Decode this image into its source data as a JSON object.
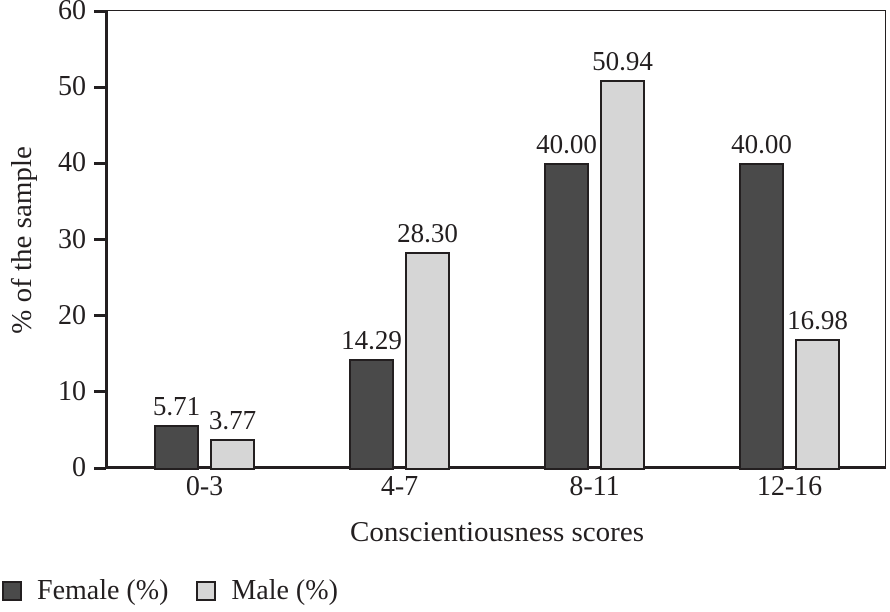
{
  "chart_data": {
    "type": "bar",
    "title": "",
    "xlabel": "Conscientiousness scores",
    "ylabel": "% of the sample",
    "categories": [
      "0-3",
      "4-7",
      "8-11",
      "12-16"
    ],
    "series": [
      {
        "name": "Female (%)",
        "color": "#4a4a4a",
        "values": [
          5.71,
          14.29,
          40.0,
          40.0
        ],
        "labels": [
          "5.71",
          "14.29",
          "40.00",
          "40.00"
        ]
      },
      {
        "name": "Male (%)",
        "color": "#d6d6d6",
        "values": [
          3.77,
          28.3,
          50.94,
          16.98
        ],
        "labels": [
          "3.77",
          "28.30",
          "50.94",
          "16.98"
        ]
      }
    ],
    "ylim": [
      0,
      60
    ],
    "yticks": [
      0,
      10,
      20,
      30,
      40,
      50,
      60
    ],
    "ytick_labels": [
      "0",
      "10",
      "20",
      "30",
      "40",
      "50",
      "60"
    ],
    "grid": false,
    "legend_position": "bottom-left",
    "bar_outline_color": "#231f20",
    "axis_color": "#231f20",
    "data_labels_shown": true
  }
}
